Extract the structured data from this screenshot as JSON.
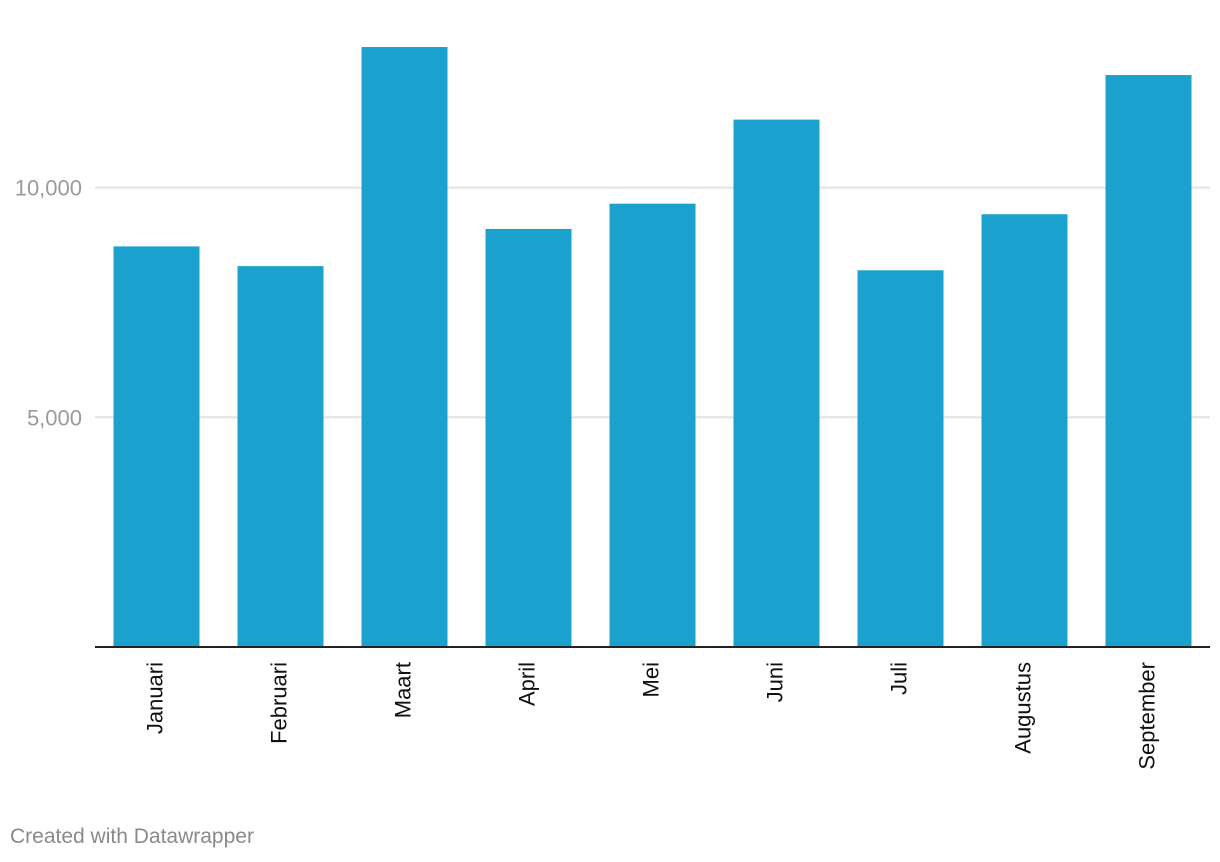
{
  "chart_data": {
    "type": "bar",
    "title": "",
    "xlabel": "",
    "ylabel": "",
    "categories": [
      "Januari",
      "Februari",
      "Maart",
      "April",
      "Mei",
      "Juni",
      "Juli",
      "Augustus",
      "September"
    ],
    "values": [
      8720,
      8290,
      13060,
      9100,
      9650,
      11480,
      8200,
      9420,
      12450
    ],
    "ylim": [
      0,
      13200
    ],
    "yticks": [
      5000,
      10000
    ],
    "ytick_labels": [
      "5,000",
      "10,000"
    ],
    "grid": true,
    "bar_color": "#1aa1cd"
  },
  "footer": {
    "credit": "Created with Datawrapper"
  }
}
